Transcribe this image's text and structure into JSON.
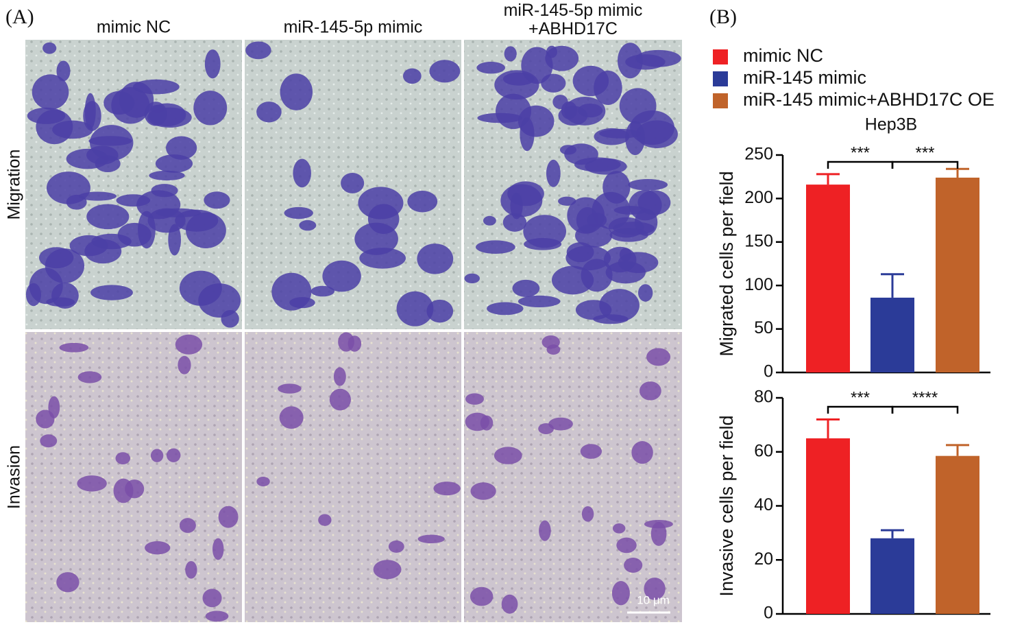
{
  "panel_a": {
    "label": "(A)",
    "columns": [
      "mimic NC",
      "miR-145-5p mimic",
      "miR-145-5p mimic\n+ABHD17C"
    ],
    "rows": [
      "Migration",
      "Invasion"
    ],
    "scale_bar": "10 μm"
  },
  "panel_b": {
    "label": "(B)"
  },
  "chart_data": [
    {
      "type": "bar",
      "title": "Hep3B",
      "y_label": "Migrated cells per field",
      "ylim": [
        0,
        250
      ],
      "yticks": [
        0,
        50,
        100,
        150,
        200,
        250
      ],
      "series": [
        {
          "name": "mimic NC",
          "color": "#ee2124",
          "values": [
            216
          ],
          "errors": [
            12
          ]
        },
        {
          "name": "miR-145 mimic",
          "color": "#2b3b98",
          "values": [
            86
          ],
          "errors": [
            27
          ]
        },
        {
          "name": "miR-145 mimic+ABHD17C OE",
          "color": "#c0632a",
          "values": [
            224
          ],
          "errors": [
            10
          ]
        }
      ],
      "annotations": [
        "***",
        "***"
      ]
    },
    {
      "type": "bar",
      "y_label": "Invasive cells per field",
      "ylim": [
        0,
        80
      ],
      "yticks": [
        0,
        20,
        40,
        60,
        80
      ],
      "series": [
        {
          "color": "#ee2124",
          "values": [
            65
          ],
          "errors": [
            7
          ]
        },
        {
          "color": "#2b3b98",
          "values": [
            28
          ],
          "errors": [
            3
          ]
        },
        {
          "color": "#c0632a",
          "values": [
            58.5
          ],
          "errors": [
            4
          ]
        }
      ],
      "annotations": [
        "***",
        "****"
      ]
    }
  ]
}
